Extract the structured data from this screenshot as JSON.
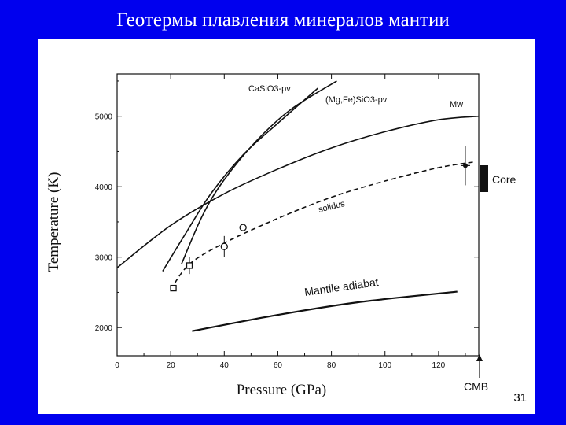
{
  "slide": {
    "title": "Геотермы плавления минералов мантии",
    "page_number": "31"
  },
  "colors": {
    "background": "#0000ee",
    "panel": "#ffffff",
    "ink": "#111111"
  },
  "chart_data": {
    "type": "line",
    "xlabel": "Pressure (GPa)",
    "ylabel": "Temperature (K)",
    "xlim": [
      0,
      135
    ],
    "ylim": [
      1600,
      5600
    ],
    "x_ticks": [
      0,
      20,
      40,
      60,
      80,
      100,
      120
    ],
    "y_ticks": [
      2000,
      3000,
      4000,
      5000
    ],
    "grid": false,
    "series": [
      {
        "name": "CaSiO3-pv",
        "style": "solid",
        "points": [
          [
            17,
            2800
          ],
          [
            25,
            3300
          ],
          [
            35,
            3900
          ],
          [
            47,
            4450
          ],
          [
            60,
            4900
          ],
          [
            75,
            5400
          ]
        ]
      },
      {
        "name": "(Mg,Fe)SiO3-pv",
        "style": "solid",
        "points": [
          [
            24,
            2900
          ],
          [
            32,
            3600
          ],
          [
            40,
            4100
          ],
          [
            52,
            4650
          ],
          [
            65,
            5100
          ],
          [
            82,
            5500
          ]
        ]
      },
      {
        "name": "Mw",
        "style": "solid",
        "points": [
          [
            0,
            2850
          ],
          [
            20,
            3450
          ],
          [
            40,
            3900
          ],
          [
            60,
            4250
          ],
          [
            80,
            4550
          ],
          [
            100,
            4780
          ],
          [
            120,
            4950
          ],
          [
            135,
            5000
          ]
        ]
      },
      {
        "name": "solidus",
        "style": "dashed",
        "points": [
          [
            20,
            2540
          ],
          [
            27,
            2900
          ],
          [
            40,
            3200
          ],
          [
            60,
            3550
          ],
          [
            80,
            3850
          ],
          [
            100,
            4080
          ],
          [
            120,
            4270
          ],
          [
            133,
            4350
          ]
        ]
      },
      {
        "name": "Mantile adiabat",
        "style": "solid",
        "points": [
          [
            28,
            1950
          ],
          [
            60,
            2180
          ],
          [
            90,
            2360
          ],
          [
            127,
            2510
          ]
        ]
      }
    ],
    "data_points": [
      {
        "x": 21,
        "y": 2560,
        "marker": "square"
      },
      {
        "x": 27,
        "y": 2880,
        "marker": "square",
        "err_y": 120
      },
      {
        "x": 40,
        "y": 3150,
        "marker": "circle",
        "err_y": 150
      },
      {
        "x": 47,
        "y": 3420,
        "marker": "circle"
      },
      {
        "x": 130,
        "y": 4300,
        "marker": "star",
        "err_y": 280
      }
    ],
    "annotations": {
      "core_label": "Core",
      "cmb_label": "CMB",
      "x_marker": 135
    }
  }
}
